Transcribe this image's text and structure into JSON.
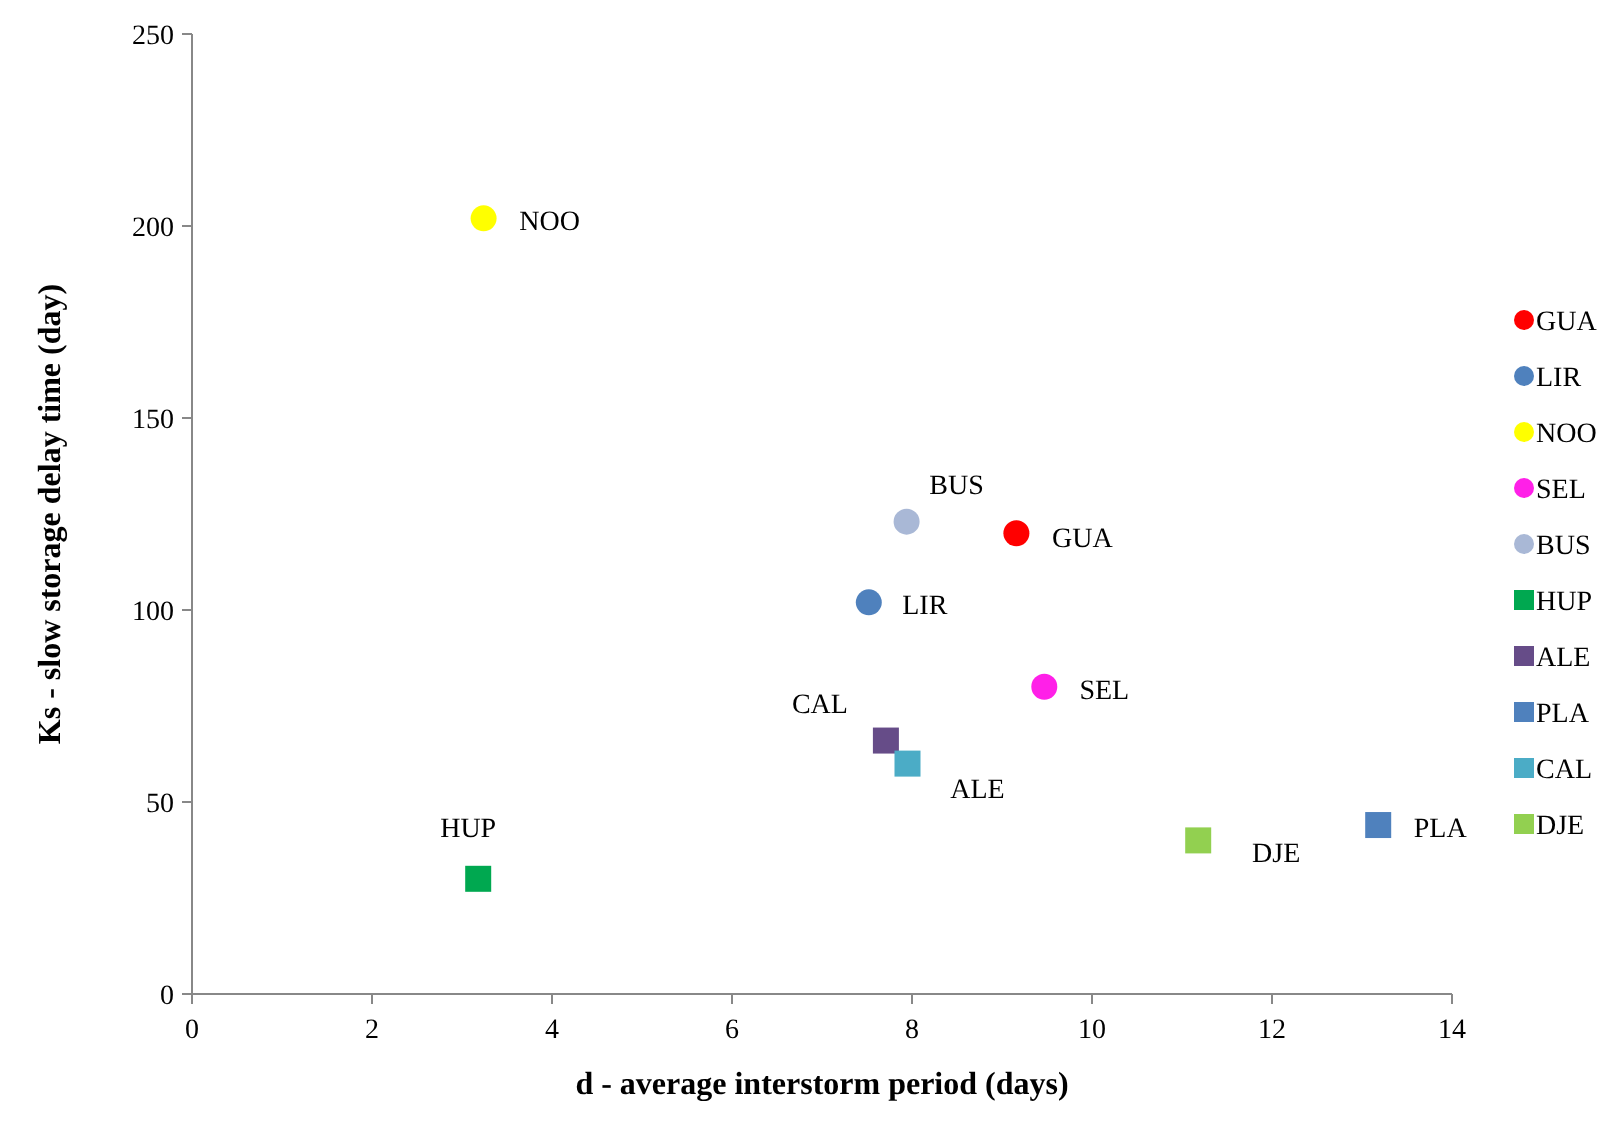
{
  "chart_data": {
    "type": "scatter",
    "xlabel": "d - average interstorm period (days)",
    "ylabel": "Ks - slow storage delay time (day)",
    "xlim": [
      0,
      14
    ],
    "xticks": [
      0,
      2,
      4,
      6,
      8,
      10,
      12,
      14
    ],
    "ylim": [
      0,
      250
    ],
    "yticks": [
      0,
      50,
      100,
      150,
      200,
      250
    ],
    "grid": false,
    "legend": "right",
    "series": [
      {
        "name": "GUA",
        "color": "#ff0000",
        "marker": "circle",
        "x": [
          9.16
        ],
        "values": [
          120
        ]
      },
      {
        "name": "LIR",
        "color": "#4f81bd",
        "marker": "circle",
        "x": [
          7.52
        ],
        "values": [
          102
        ]
      },
      {
        "name": "NOO",
        "color": "#ffff00",
        "marker": "circle",
        "x": [
          3.24
        ],
        "values": [
          202
        ]
      },
      {
        "name": "SEL",
        "color": "#ff20e8",
        "marker": "circle",
        "x": [
          9.47
        ],
        "values": [
          80
        ]
      },
      {
        "name": "BUS",
        "color": "#a9b8d6",
        "marker": "circle",
        "x": [
          7.94
        ],
        "values": [
          123
        ]
      },
      {
        "name": "HUP",
        "color": "#00a850",
        "marker": "square",
        "x": [
          3.18
        ],
        "values": [
          30
        ]
      },
      {
        "name": "ALE",
        "color": "#664c88",
        "marker": "square",
        "x": [
          7.71
        ],
        "values": [
          66
        ]
      },
      {
        "name": "PLA",
        "color": "#4f81bd",
        "marker": "square",
        "x": [
          13.18
        ],
        "values": [
          44
        ]
      },
      {
        "name": "CAL",
        "color": "#4bacc6",
        "marker": "square",
        "x": [
          7.95
        ],
        "values": [
          60
        ]
      },
      {
        "name": "DJE",
        "color": "#92d050",
        "marker": "square",
        "x": [
          11.18
        ],
        "values": [
          40
        ]
      }
    ],
    "annotations": [
      {
        "text": "GUA",
        "x": 9.16,
        "y": 120
      },
      {
        "text": "LIR",
        "x": 7.52,
        "y": 102
      },
      {
        "text": "NOO",
        "x": 3.24,
        "y": 202
      },
      {
        "text": "SEL",
        "x": 9.47,
        "y": 80
      },
      {
        "text": "BUS",
        "x": 7.94,
        "y": 123
      },
      {
        "text": "HUP",
        "x": 3.18,
        "y": 30
      },
      {
        "text": "CAL",
        "x": 7.71,
        "y": 66
      },
      {
        "text": "ALE",
        "x": 7.95,
        "y": 60
      },
      {
        "text": "PLA",
        "x": 13.18,
        "y": 44
      },
      {
        "text": "DJE",
        "x": 11.18,
        "y": 40
      }
    ]
  }
}
